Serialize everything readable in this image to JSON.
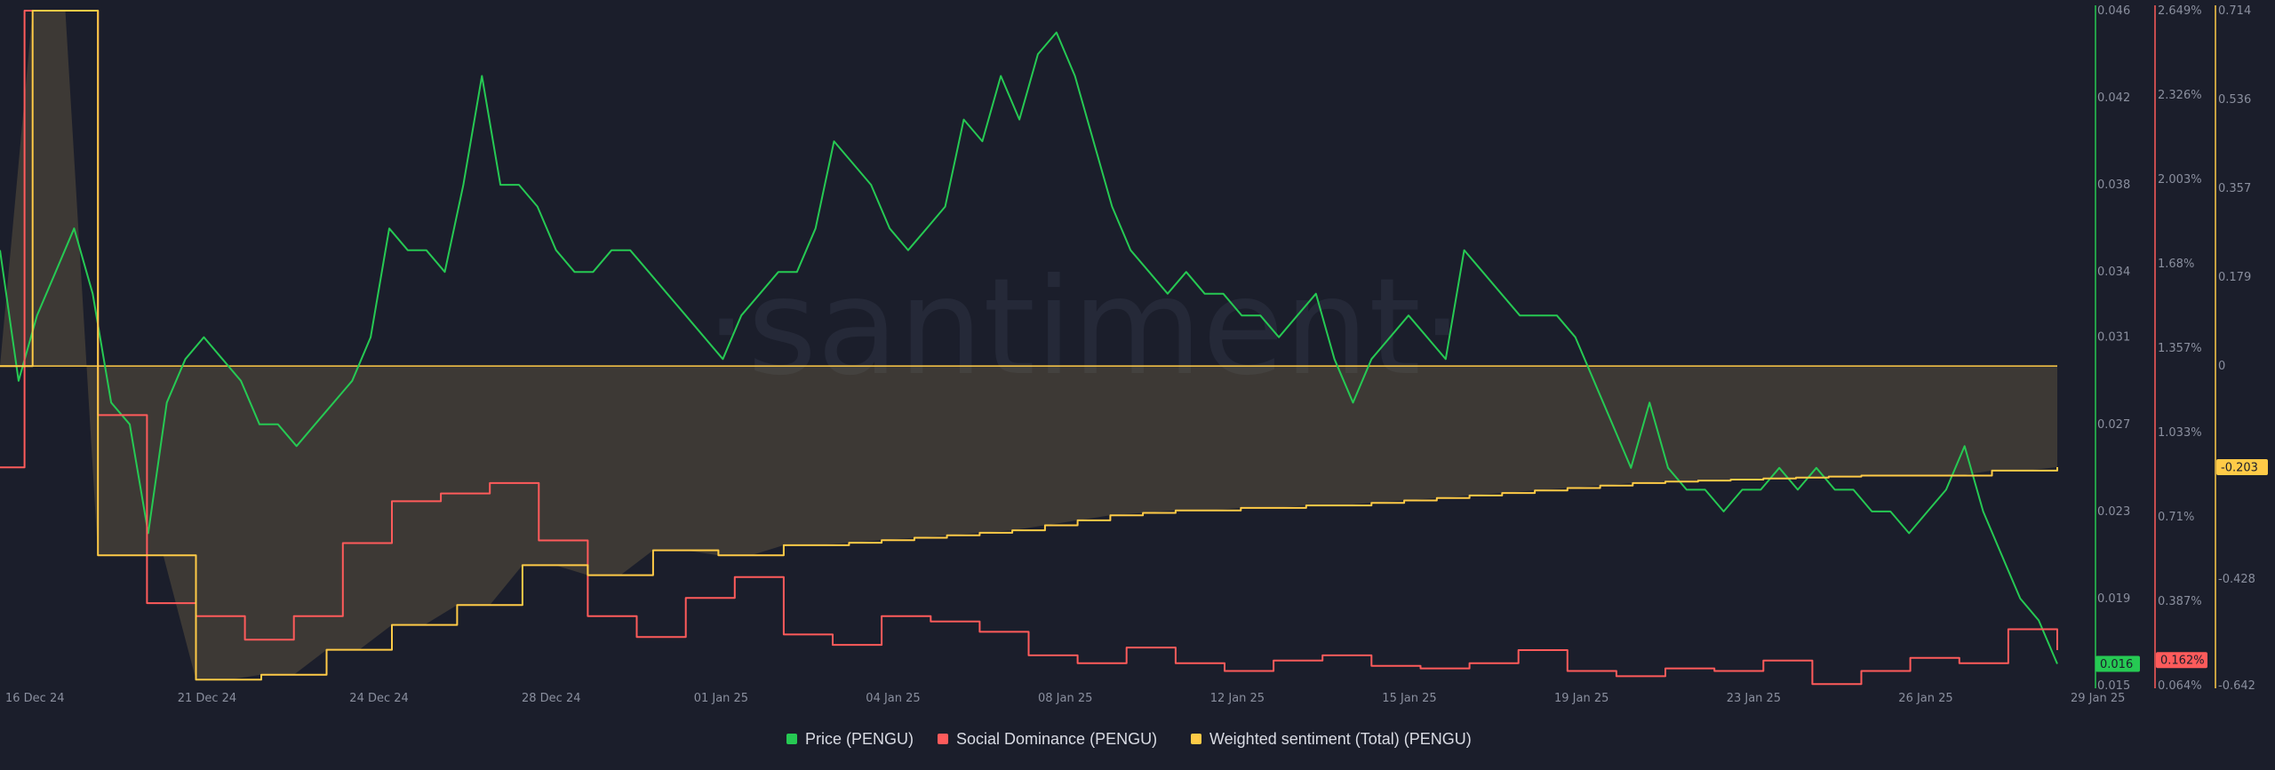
{
  "watermark": "·santiment·",
  "chart_data": {
    "type": "line",
    "x_labels": [
      "16 Dec 24",
      "21 Dec 24",
      "24 Dec 24",
      "28 Dec 24",
      "01 Jan 25",
      "04 Jan 25",
      "08 Jan 25",
      "12 Jan 25",
      "15 Jan 25",
      "19 Jan 25",
      "23 Jan 25",
      "26 Jan 25",
      "29 Jan 25"
    ],
    "x_range": [
      "16 Dec 24",
      "29 Jan 25"
    ],
    "axes": {
      "price": {
        "ticks": [
          "0.046",
          "0.042",
          "0.038",
          "0.034",
          "0.031",
          "0.027",
          "0.023",
          "0.019",
          "0.015"
        ],
        "range": [
          0.015,
          0.046
        ],
        "color": "#26c953",
        "current_label": "0.016"
      },
      "social_dominance": {
        "ticks": [
          "2.649%",
          "2.326%",
          "2.003%",
          "1.68%",
          "1.357%",
          "1.033%",
          "0.71%",
          "0.387%",
          "0.064%"
        ],
        "range": [
          0.064,
          2.649
        ],
        "color": "#ff5b5b",
        "current_label": "0.162%"
      },
      "sentiment": {
        "ticks": [
          "0.714",
          "0.536",
          "0.357",
          "0.179",
          "0",
          "-0.428",
          "-0.642"
        ],
        "range": [
          -0.642,
          0.714
        ],
        "color": "#ffcb47",
        "current_label": "-0.203"
      }
    },
    "series": [
      {
        "name": "Price (PENGU)",
        "color": "#26c953",
        "axis": "price",
        "values": [
          0.035,
          0.029,
          0.032,
          0.034,
          0.036,
          0.033,
          0.028,
          0.027,
          0.022,
          0.028,
          0.03,
          0.031,
          0.03,
          0.029,
          0.027,
          0.027,
          0.026,
          0.027,
          0.028,
          0.029,
          0.031,
          0.036,
          0.035,
          0.035,
          0.034,
          0.038,
          0.043,
          0.038,
          0.038,
          0.037,
          0.035,
          0.034,
          0.034,
          0.035,
          0.035,
          0.034,
          0.033,
          0.032,
          0.031,
          0.03,
          0.032,
          0.033,
          0.034,
          0.034,
          0.036,
          0.04,
          0.039,
          0.038,
          0.036,
          0.035,
          0.036,
          0.037,
          0.041,
          0.04,
          0.043,
          0.041,
          0.044,
          0.045,
          0.043,
          0.04,
          0.037,
          0.035,
          0.034,
          0.033,
          0.034,
          0.033,
          0.033,
          0.032,
          0.032,
          0.031,
          0.032,
          0.033,
          0.03,
          0.028,
          0.03,
          0.031,
          0.032,
          0.031,
          0.03,
          0.035,
          0.034,
          0.033,
          0.032,
          0.032,
          0.032,
          0.031,
          0.029,
          0.027,
          0.025,
          0.028,
          0.025,
          0.024,
          0.024,
          0.023,
          0.024,
          0.024,
          0.025,
          0.024,
          0.025,
          0.024,
          0.024,
          0.023,
          0.023,
          0.022,
          0.023,
          0.024,
          0.026,
          0.023,
          0.021,
          0.019,
          0.018,
          0.016
        ],
        "current": 0.016
      },
      {
        "name": "Social Dominance (PENGU)",
        "color": "#ff5b5b",
        "axis": "social_dominance",
        "values": [
          0.9,
          2.649,
          2.649,
          2.649,
          1.1,
          1.1,
          0.38,
          0.38,
          0.33,
          0.33,
          0.24,
          0.24,
          0.33,
          0.33,
          0.61,
          0.61,
          0.77,
          0.77,
          0.8,
          0.8,
          0.84,
          0.84,
          0.62,
          0.62,
          0.33,
          0.33,
          0.25,
          0.25,
          0.4,
          0.4,
          0.48,
          0.48,
          0.26,
          0.26,
          0.22,
          0.22,
          0.33,
          0.33,
          0.31,
          0.31,
          0.27,
          0.27,
          0.18,
          0.18,
          0.15,
          0.15,
          0.21,
          0.21,
          0.15,
          0.15,
          0.12,
          0.12,
          0.16,
          0.16,
          0.18,
          0.18,
          0.14,
          0.14,
          0.13,
          0.13,
          0.15,
          0.15,
          0.2,
          0.2,
          0.12,
          0.12,
          0.1,
          0.1,
          0.13,
          0.13,
          0.12,
          0.12,
          0.16,
          0.16,
          0.07,
          0.07,
          0.12,
          0.12,
          0.17,
          0.17,
          0.15,
          0.15,
          0.28,
          0.28,
          0.2
        ],
        "current": 0.162
      },
      {
        "name": "Weighted sentiment (Total) (PENGU)",
        "color": "#ffcb47",
        "axis": "sentiment",
        "values": [
          0.0,
          0.714,
          0.714,
          -0.38,
          -0.38,
          -0.38,
          -0.63,
          -0.63,
          -0.62,
          -0.62,
          -0.57,
          -0.57,
          -0.52,
          -0.52,
          -0.48,
          -0.48,
          -0.4,
          -0.4,
          -0.42,
          -0.42,
          -0.37,
          -0.37,
          -0.38,
          -0.38,
          -0.36,
          -0.36,
          -0.355,
          -0.35,
          -0.345,
          -0.34,
          -0.335,
          -0.33,
          -0.32,
          -0.31,
          -0.3,
          -0.295,
          -0.29,
          -0.29,
          -0.285,
          -0.285,
          -0.28,
          -0.28,
          -0.275,
          -0.27,
          -0.265,
          -0.26,
          -0.255,
          -0.25,
          -0.245,
          -0.24,
          -0.235,
          -0.232,
          -0.23,
          -0.228,
          -0.226,
          -0.224,
          -0.222,
          -0.22,
          -0.22,
          -0.22,
          -0.22,
          -0.21,
          -0.21,
          -0.203
        ],
        "current": -0.203
      }
    ],
    "legend_position": "bottom-center",
    "grid": false
  }
}
